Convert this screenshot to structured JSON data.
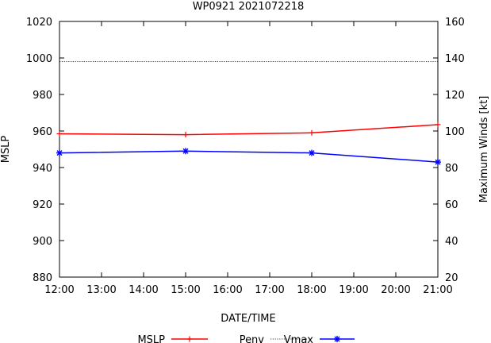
{
  "chart_data": {
    "type": "line",
    "title": "WP0921 2021072218",
    "xlabel": "DATE/TIME",
    "ylabel": "MSLP",
    "y2label": "Maximum Winds [kt]",
    "x_ticks": [
      "12:00",
      "13:00",
      "14:00",
      "15:00",
      "16:00",
      "17:00",
      "18:00",
      "19:00",
      "20:00",
      "21:00"
    ],
    "ylim": [
      880,
      1020
    ],
    "y_ticks": [
      880,
      900,
      920,
      940,
      960,
      980,
      1000,
      1020
    ],
    "y2lim": [
      20,
      160
    ],
    "y2_ticks": [
      20,
      40,
      60,
      80,
      100,
      120,
      140,
      160
    ],
    "grid": false,
    "legend_position": "bottom",
    "series": [
      {
        "name": "MSLP",
        "axis": "left",
        "color": "#ff0000",
        "marker": "plus",
        "x": [
          "12:00",
          "15:00",
          "18:00",
          "21:00"
        ],
        "values": [
          958.5,
          958,
          959,
          963.5
        ]
      },
      {
        "name": "Penv",
        "axis": "left",
        "color": "#000000",
        "style": "dotted",
        "x": [
          "12:00",
          "21:00"
        ],
        "values": [
          998,
          998
        ]
      },
      {
        "name": "Vmax",
        "axis": "right",
        "color": "#0000ff",
        "marker": "star",
        "x": [
          "12:00",
          "15:00",
          "18:00",
          "21:00"
        ],
        "values": [
          88,
          89,
          88,
          83
        ]
      }
    ]
  }
}
